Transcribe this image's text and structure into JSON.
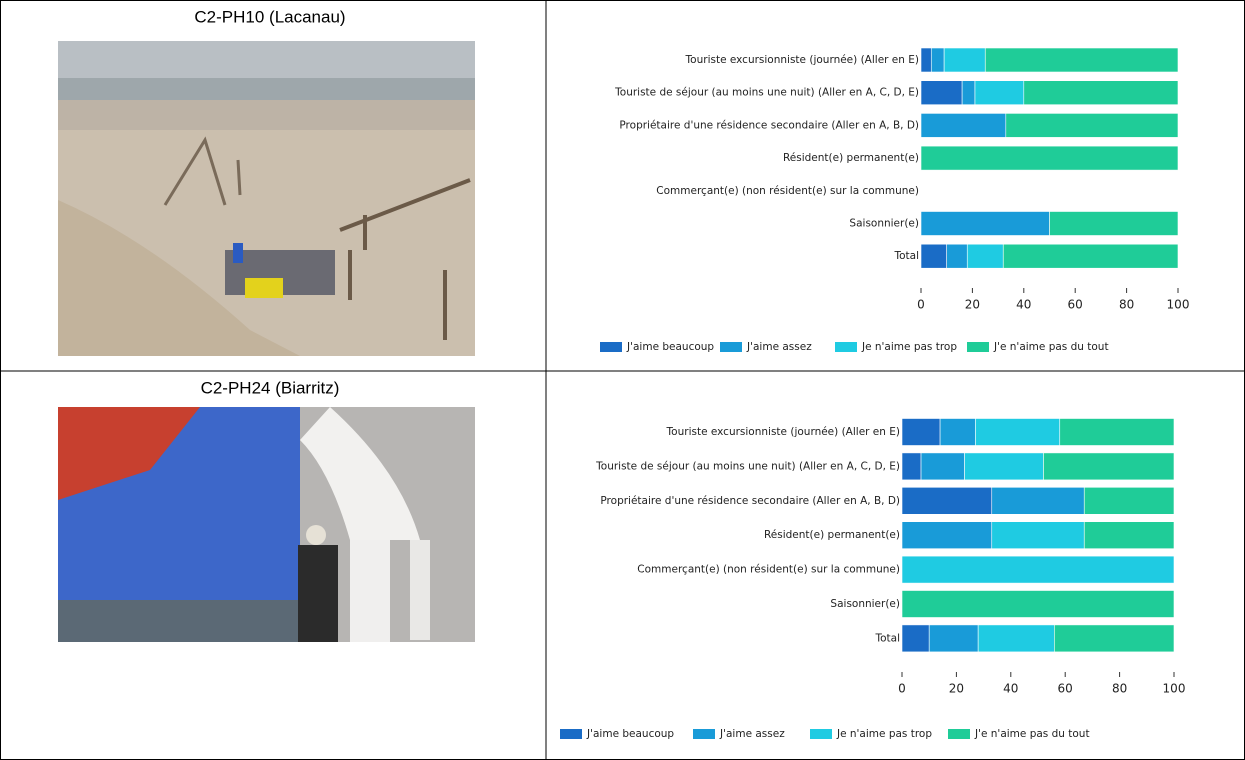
{
  "rows": [
    {
      "title": "C2-PH10 (Lacanau)"
    },
    {
      "title": "C2-PH24 (Biarritz)"
    }
  ],
  "chart_data": [
    {
      "type": "bar",
      "orientation": "horizontal",
      "stacked": true,
      "categories": [
        "Touriste excursionniste (journée) (Aller en E)",
        "Touriste de séjour (au moins une nuit) (Aller en A, C, D, E)",
        "Propriétaire d'une résidence secondaire (Aller en A, B, D)",
        "Résident(e) permanent(e)",
        "Commerçant(e) (non résident(e) sur la commune)",
        "Saisonnier(e)",
        "Total"
      ],
      "series": [
        {
          "name": "J'aime beaucoup",
          "color": "#1a6cc6",
          "values": [
            4,
            16,
            0,
            0,
            null,
            0,
            10
          ]
        },
        {
          "name": "J'aime assez",
          "color": "#199bd8",
          "values": [
            5,
            5,
            33,
            0,
            null,
            50,
            8
          ]
        },
        {
          "name": "Je n'aime pas trop",
          "color": "#1fcbe2",
          "values": [
            16,
            19,
            0,
            0,
            null,
            0,
            14
          ]
        },
        {
          "name": "J'e n'aime pas du tout",
          "color": "#1fcc98",
          "values": [
            75,
            60,
            67,
            100,
            null,
            50,
            68
          ]
        }
      ],
      "xlim": [
        0,
        100
      ],
      "xticks": [
        0,
        20,
        40,
        60,
        80,
        100
      ],
      "legend": "bottom"
    },
    {
      "type": "bar",
      "orientation": "horizontal",
      "stacked": true,
      "categories": [
        "Touriste excursionniste (journée) (Aller en E)",
        "Touriste de séjour (au moins une nuit) (Aller en A, C, D, E)",
        "Propriétaire d'une résidence secondaire (Aller en A, B, D)",
        "Résident(e) permanent(e)",
        "Commerçant(e) (non résident(e) sur la commune)",
        "Saisonnier(e)",
        "Total"
      ],
      "series": [
        {
          "name": "J'aime beaucoup",
          "color": "#1a6cc6",
          "values": [
            14,
            7,
            33,
            0,
            0,
            0,
            10
          ]
        },
        {
          "name": "J'aime assez",
          "color": "#199bd8",
          "values": [
            13,
            16,
            34,
            33,
            0,
            0,
            18
          ]
        },
        {
          "name": "Je n'aime pas trop",
          "color": "#1fcbe2",
          "values": [
            31,
            29,
            0,
            34,
            100,
            0,
            28
          ]
        },
        {
          "name": "J'e n'aime pas du tout",
          "color": "#1fcc98",
          "values": [
            42,
            48,
            33,
            33,
            0,
            100,
            44
          ]
        }
      ],
      "xlim": [
        0,
        100
      ],
      "xticks": [
        0,
        20,
        40,
        60,
        80,
        100
      ],
      "legend": "bottom"
    }
  ]
}
